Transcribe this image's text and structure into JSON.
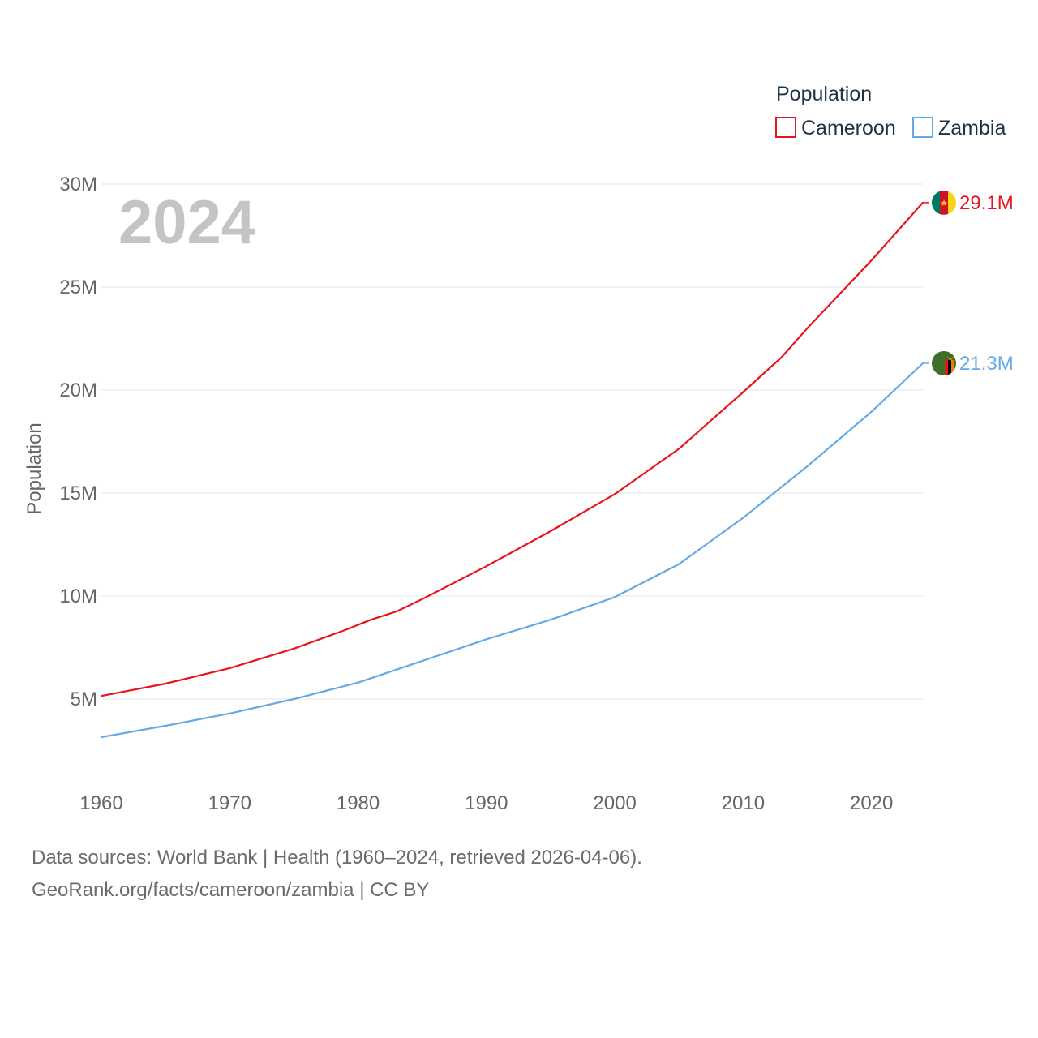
{
  "chart_data": {
    "type": "line",
    "title": "",
    "current_year_label": "2024",
    "xlabel": "",
    "ylabel": "Population",
    "xlim": [
      1960,
      2024
    ],
    "ylim": [
      0,
      30000000
    ],
    "x_ticks": [
      1960,
      1970,
      1980,
      1990,
      2000,
      2010,
      2020
    ],
    "x_tick_labels": [
      "1960",
      "1970",
      "1980",
      "1990",
      "2000",
      "2010",
      "2020"
    ],
    "y_ticks": [
      5000000,
      10000000,
      15000000,
      20000000,
      25000000,
      30000000
    ],
    "y_tick_labels": [
      "5M",
      "10M",
      "15M",
      "20M",
      "25M",
      "30M"
    ],
    "legend_title": "Population",
    "legend_position": "top-right",
    "grid": true,
    "series": [
      {
        "name": "Cameroon",
        "color": "#e8141b",
        "end_label": "29.1M",
        "flag_icon": "cameroon-flag-icon",
        "x": [
          1960,
          1965,
          1970,
          1975,
          1979,
          1981,
          1983,
          1985,
          1990,
          1995,
          2000,
          2005,
          2010,
          2013,
          2015,
          2020,
          2024
        ],
        "values": [
          5150000,
          5750000,
          6500000,
          7450000,
          8350000,
          8850000,
          9250000,
          9850000,
          11450000,
          13150000,
          14950000,
          17150000,
          19900000,
          21600000,
          23000000,
          26300000,
          29100000
        ]
      },
      {
        "name": "Zambia",
        "color": "#64a9e6",
        "end_label": "21.3M",
        "flag_icon": "zambia-flag-icon",
        "x": [
          1960,
          1965,
          1970,
          1975,
          1980,
          1985,
          1990,
          1995,
          2000,
          2005,
          2010,
          2015,
          2020,
          2024
        ],
        "values": [
          3150000,
          3700000,
          4300000,
          5000000,
          5800000,
          6850000,
          7900000,
          8850000,
          9950000,
          11550000,
          13800000,
          16300000,
          18950000,
          21300000
        ]
      }
    ]
  },
  "footer": {
    "line1": "Data sources: World Bank | Health (1960–2024, retrieved 2026-04-06).",
    "line2": "GeoRank.org/facts/cameroon/zambia | CC BY"
  }
}
